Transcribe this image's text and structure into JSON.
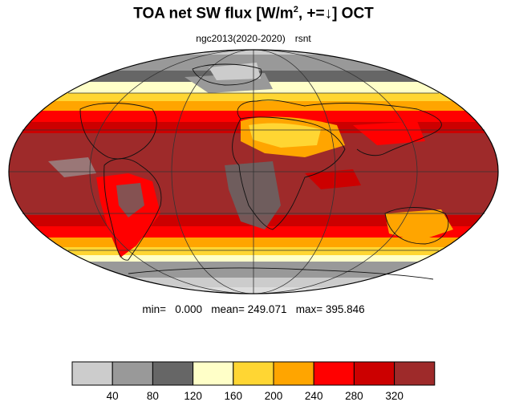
{
  "title": {
    "main": "TOA net SW flux [W/m",
    "sup": "2",
    "rest": ", +=",
    "arrow": "↓",
    "end": "]  OCT"
  },
  "subtitle": {
    "left": "ngc2013(2020-2020)",
    "right": "rsnt"
  },
  "stats": {
    "text": "min=   0.000   mean= 249.071   max= 395.846"
  },
  "colors": {
    "ocean_low": "#dddddd",
    "gray_1": "#cccccc",
    "gray_2": "#999999",
    "gray_3": "#666666",
    "pale_yellow": "#ffffc8",
    "yellow": "#ffd633",
    "orange": "#ffa500",
    "red": "#ff0000",
    "dark_red": "#cc0000",
    "maroon": "#9e2a2a"
  },
  "colorbar": {
    "colors": [
      "#cccccc",
      "#999999",
      "#666666",
      "#ffffc8",
      "#ffd633",
      "#ffa500",
      "#ff0000",
      "#cc0000",
      "#9e2a2a"
    ],
    "labels": [
      "40",
      "80",
      "120",
      "160",
      "200",
      "240",
      "280",
      "320"
    ]
  }
}
